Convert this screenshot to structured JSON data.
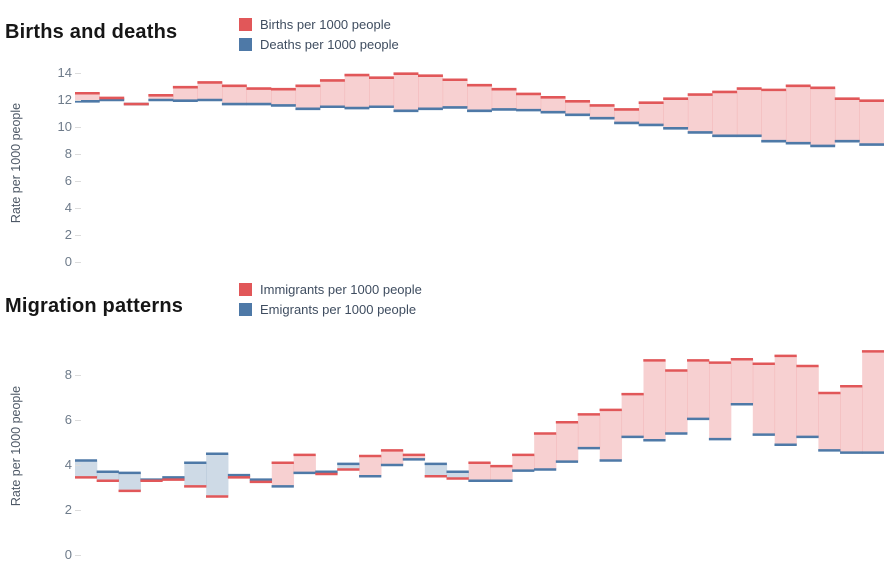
{
  "colors": {
    "series_red": "#e15759",
    "series_blue": "#4e79a7",
    "fill_red_above": "rgba(225,87,89,0.28)",
    "fill_blue_above": "rgba(78,121,167,0.28)",
    "title_text": "#161616",
    "legend_text": "#3f4d60",
    "tick_text": "#6e7b8a"
  },
  "chart_data": [
    {
      "type": "area",
      "variant": "step-difference",
      "title": "Births and deaths",
      "ylabel": "Rate per 1000 people",
      "yticks": [
        14,
        12,
        10,
        8,
        6,
        4,
        2,
        0
      ],
      "ylim": [
        0,
        14.6
      ],
      "xticks": "none-visible",
      "grid": "off",
      "legend_position": "top",
      "series": [
        {
          "name": "Births per 1000 people",
          "color": "#e15759",
          "values": [
            12.5,
            12.15,
            11.7,
            12.35,
            12.95,
            13.3,
            13.05,
            12.85,
            12.8,
            13.05,
            13.45,
            13.85,
            13.65,
            13.95,
            13.8,
            13.5,
            13.1,
            12.8,
            12.45,
            12.2,
            11.9,
            11.6,
            11.3,
            11.8,
            12.1,
            12.4,
            12.6,
            12.85,
            12.75,
            13.05,
            12.9,
            12.1,
            11.95
          ]
        },
        {
          "name": "Deaths per 1000 people",
          "color": "#4e79a7",
          "values": [
            11.9,
            12.0,
            11.7,
            12.0,
            11.95,
            12.0,
            11.7,
            11.7,
            11.6,
            11.35,
            11.5,
            11.4,
            11.5,
            11.2,
            11.35,
            11.45,
            11.2,
            11.3,
            11.25,
            11.1,
            10.9,
            10.65,
            10.3,
            10.15,
            9.9,
            9.6,
            9.35,
            9.35,
            8.95,
            8.8,
            8.6,
            8.95,
            8.7
          ]
        }
      ]
    },
    {
      "type": "area",
      "variant": "step-difference",
      "title": "Migration patterns",
      "ylabel": "Rate per 1000 people",
      "yticks": [
        8,
        6,
        4,
        2,
        0
      ],
      "ylim": [
        0,
        9.55
      ],
      "xticks": "none-visible",
      "grid": "off",
      "legend_position": "top",
      "series": [
        {
          "name": "Immigrants per 1000 people",
          "color": "#e15759",
          "values": [
            3.45,
            3.3,
            2.85,
            3.3,
            3.35,
            3.05,
            2.6,
            3.45,
            3.25,
            4.1,
            4.45,
            3.6,
            3.8,
            4.4,
            4.65,
            4.45,
            3.5,
            3.4,
            4.1,
            3.95,
            4.45,
            5.4,
            5.9,
            6.25,
            6.45,
            7.15,
            8.65,
            8.2,
            8.65,
            8.55,
            8.7,
            8.5,
            8.85,
            8.4,
            7.2,
            7.5,
            9.05
          ]
        },
        {
          "name": "Emigrants per 1000 people",
          "color": "#4e79a7",
          "values": [
            4.2,
            3.7,
            3.65,
            3.35,
            3.45,
            4.1,
            4.5,
            3.55,
            3.35,
            3.05,
            3.65,
            3.7,
            4.05,
            3.5,
            4.0,
            4.25,
            4.05,
            3.7,
            3.3,
            3.3,
            3.75,
            3.8,
            4.15,
            4.75,
            4.2,
            5.25,
            5.1,
            5.4,
            6.05,
            5.15,
            6.7,
            5.35,
            4.9,
            5.25,
            4.65,
            4.55,
            4.55
          ]
        }
      ]
    }
  ]
}
